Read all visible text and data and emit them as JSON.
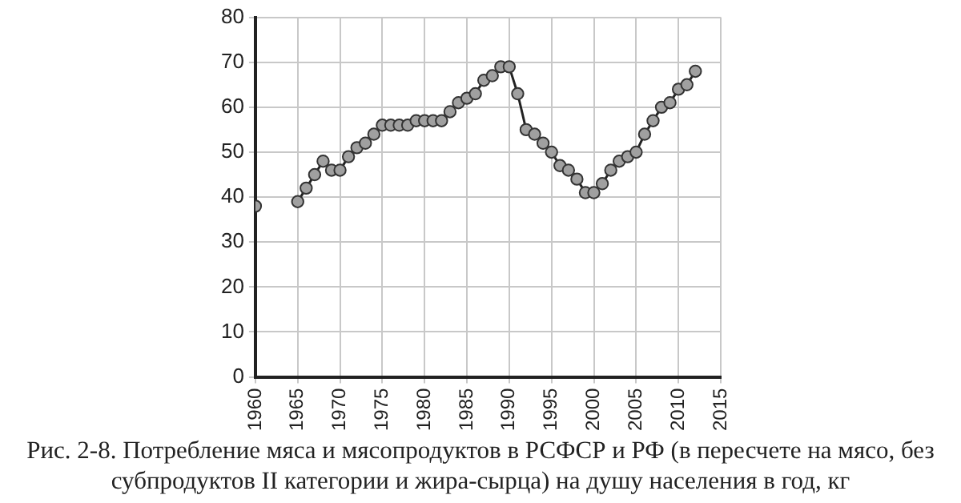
{
  "chart_data": {
    "type": "line",
    "x": [
      1960,
      1961,
      1965,
      1966,
      1967,
      1968,
      1969,
      1970,
      1971,
      1972,
      1973,
      1974,
      1975,
      1976,
      1977,
      1978,
      1979,
      1980,
      1981,
      1982,
      1983,
      1984,
      1985,
      1986,
      1987,
      1988,
      1989,
      1990,
      1991,
      1992,
      1993,
      1994,
      1995,
      1996,
      1997,
      1998,
      1999,
      2000,
      2001,
      2002,
      2003,
      2004,
      2005,
      2006,
      2007,
      2008,
      2009,
      2010,
      2011,
      2012
    ],
    "series": [
      {
        "color": "#a0a0a0",
        "values": [
          38,
          null,
          39,
          42,
          45,
          48,
          46,
          46,
          49,
          51,
          52,
          54,
          56,
          56,
          56,
          56,
          57,
          57,
          57,
          57,
          59,
          61,
          62,
          63,
          66,
          67,
          69,
          69,
          63,
          55,
          54,
          52,
          50,
          47,
          46,
          44,
          41,
          41,
          43,
          46,
          48,
          49,
          50,
          54,
          57,
          60,
          61,
          64,
          65,
          68
        ]
      }
    ],
    "xlim": [
      1960,
      2015
    ],
    "xticks": [
      1960,
      1965,
      1970,
      1975,
      1980,
      1985,
      1990,
      1995,
      2000,
      2005,
      2010,
      2015
    ],
    "ylim": [
      0,
      80
    ],
    "yticks": [
      0,
      10,
      20,
      30,
      40,
      50,
      60,
      70,
      80
    ],
    "grid": true,
    "marker": "circle",
    "line_style": "solid",
    "legend": false,
    "annotations": [
      "Рис. 2-8. Потребление мяса и мясопродуктов в РСФСР и РФ (в пересчете на мясо, без субпродуктов II категории и жира-сырца) на душу населения в год, кг"
    ]
  }
}
